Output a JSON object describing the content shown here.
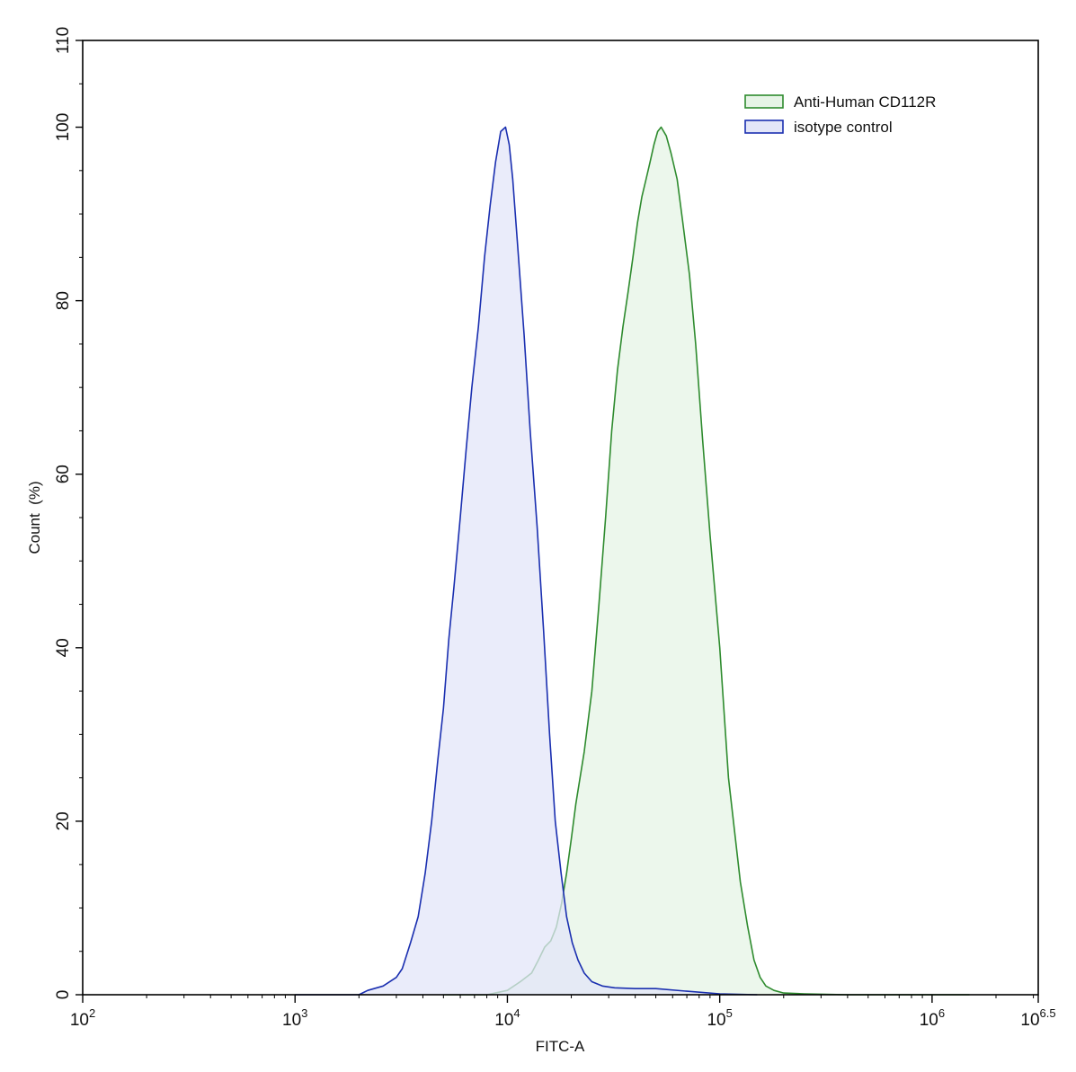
{
  "chart_data": {
    "type": "area",
    "title": "",
    "xlabel": "FITC-A",
    "ylabel": "Count  (%)",
    "xscale": "log10",
    "xlim": [
      100,
      3162278
    ],
    "ylim": [
      0,
      110
    ],
    "grid": false,
    "legend_position": "top-right",
    "x_ticks": [
      {
        "value": 100,
        "base": "10",
        "exp": "2"
      },
      {
        "value": 1000,
        "base": "10",
        "exp": "3"
      },
      {
        "value": 10000,
        "base": "10",
        "exp": "4"
      },
      {
        "value": 100000,
        "base": "10",
        "exp": "5"
      },
      {
        "value": 1000000,
        "base": "10",
        "exp": "6"
      },
      {
        "value": 3162278,
        "base": "10",
        "exp": "6.5"
      }
    ],
    "y_ticks": [
      0,
      20,
      40,
      60,
      80,
      100,
      110
    ],
    "series": [
      {
        "name": "Anti-Human CD112R",
        "stroke": "#2e8b2e",
        "fill": "#e6f4e6",
        "x": [
          5000,
          8000,
          10000,
          11500,
          13000,
          14000,
          15000,
          16000,
          17000,
          18000,
          19000,
          20000,
          21000,
          23000,
          25000,
          27000,
          29000,
          31000,
          33000,
          35000,
          37000,
          39000,
          41000,
          43000,
          45000,
          47000,
          49000,
          51000,
          53000,
          56000,
          59000,
          63000,
          67000,
          72000,
          77000,
          83000,
          90000,
          100000,
          110000,
          125000,
          135000,
          145000,
          155000,
          165000,
          180000,
          200000,
          250000,
          400000,
          1000000,
          1500000
        ],
        "y": [
          0,
          0,
          0.5,
          1.5,
          2.5,
          4,
          5.5,
          6.2,
          7.8,
          10.5,
          14,
          18,
          22,
          28,
          35,
          45,
          55,
          65,
          72,
          77,
          81,
          85,
          89,
          92,
          94,
          96,
          98,
          99.5,
          100,
          99,
          97,
          94,
          89,
          83,
          75,
          64,
          53,
          40,
          25,
          13,
          8,
          4,
          2,
          1,
          0.5,
          0.2,
          0.1,
          0,
          0,
          0
        ]
      },
      {
        "name": "isotype control",
        "stroke": "#1a2fb0",
        "fill": "#e3e6f8",
        "x": [
          1000,
          2000,
          2200,
          2600,
          3000,
          3200,
          3500,
          3800,
          4100,
          4400,
          4700,
          5000,
          5300,
          5600,
          6000,
          6400,
          6800,
          7300,
          7800,
          8300,
          8800,
          9300,
          9800,
          10200,
          10600,
          11200,
          12000,
          12800,
          13800,
          14800,
          15800,
          16800,
          17900,
          19000,
          20200,
          21500,
          23000,
          25000,
          28000,
          32000,
          40000,
          50000,
          70000,
          100000,
          150000
        ],
        "y": [
          0,
          0,
          0.5,
          1,
          2,
          3,
          6,
          9,
          14,
          20,
          27,
          33,
          41,
          47,
          55,
          63,
          70,
          77,
          85,
          91,
          96,
          99.5,
          100,
          98,
          94,
          86,
          76,
          65,
          54,
          42,
          30,
          20,
          14,
          9,
          6,
          4,
          2.5,
          1.5,
          1,
          0.8,
          0.7,
          0.7,
          0.4,
          0.1,
          0
        ]
      }
    ]
  }
}
